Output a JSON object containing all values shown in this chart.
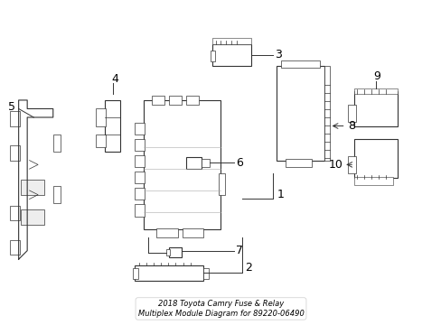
{
  "title": "2018 Toyota Camry Fuse & Relay\nMultiplex Module Diagram for 89220-06490",
  "bg_color": "#ffffff",
  "line_color": "#333333",
  "text_color": "#000000",
  "fig_width": 4.89,
  "fig_height": 3.6,
  "dpi": 100
}
